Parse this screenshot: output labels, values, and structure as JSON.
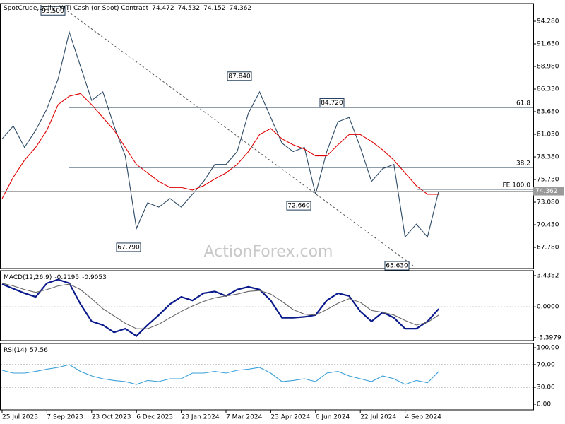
{
  "chart_data": [
    {
      "type": "line",
      "symbol": "SpotCrude,Daily",
      "description": "WTI Cash (or Spot) Contract",
      "ohlc": {
        "open": 74.472,
        "high": 74.532,
        "low": 74.152
      },
      "watermark": "ActionForex.com",
      "categories": [
        "25 Jul 2023",
        null,
        null,
        null,
        "7 Sep 2023",
        null,
        null,
        null,
        "23 Oct 2023",
        null,
        null,
        null,
        "6 Dec 2023",
        null,
        null,
        null,
        "23 Jan 2024",
        null,
        null,
        null,
        "7 Mar 2024",
        null,
        null,
        null,
        "23 Apr 2024",
        null,
        null,
        null,
        "6 Jun 2024",
        null,
        null,
        null,
        "22 Jul 2024",
        null,
        null,
        null,
        "4 Sep 2024",
        null,
        null,
        null
      ],
      "series": [
        {
          "color": "#2c4a66",
          "values": [
            80.5,
            82,
            79.5,
            81.5,
            84,
            87.5,
            93,
            89,
            85,
            86,
            82,
            78.5,
            70,
            73,
            72.5,
            73.5,
            72.5,
            74,
            75.5,
            77.5,
            77.5,
            79,
            83.5,
            86,
            83,
            80,
            79,
            79.5,
            74,
            79,
            82.5,
            83,
            79.5,
            75.5,
            77,
            77.5,
            69,
            70.5,
            69,
            74.362
          ]
        },
        {
          "color": "#e00000",
          "values": [
            73.5,
            76,
            78,
            79.5,
            81.5,
            84.5,
            85.5,
            85.8,
            84.5,
            83,
            81.5,
            79.5,
            77.5,
            76.5,
            75.5,
            74.8,
            74.8,
            74.5,
            75,
            75.8,
            76.5,
            77.5,
            79,
            81,
            81.7,
            80.5,
            79.8,
            79.3,
            78.5,
            78.5,
            79.8,
            81,
            81,
            80.2,
            79.2,
            78,
            76.5,
            75,
            74,
            74
          ]
        }
      ],
      "ylim": [
        65.3,
        96.35
      ],
      "yticks": [
        {
          "value": 94.28,
          "label": "94.280"
        },
        {
          "value": 91.63,
          "label": "91.630"
        },
        {
          "value": 88.98,
          "label": "88.980"
        },
        {
          "value": 86.33,
          "label": "86.330"
        },
        {
          "value": 83.68,
          "label": "83.680"
        },
        {
          "value": 81.03,
          "label": "81.030"
        },
        {
          "value": 78.38,
          "label": "78.380"
        },
        {
          "value": 75.73,
          "label": "75.730"
        },
        {
          "value": 73.08,
          "label": "73.080"
        },
        {
          "value": 70.43,
          "label": "70.430"
        },
        {
          "value": 67.78,
          "label": "67.780"
        }
      ],
      "levels": [
        {
          "value": 84.18,
          "label": "61.8"
        },
        {
          "value": 77.14,
          "label": "38.2"
        },
        {
          "value": 74.58,
          "label": "FE 100.0"
        }
      ],
      "annotations": [
        {
          "value": 95.5,
          "label": "95.500"
        },
        {
          "value": 67.79,
          "label": "67.790"
        },
        {
          "value": 87.84,
          "label": "87.840"
        },
        {
          "value": 72.66,
          "label": "72.660"
        },
        {
          "value": 84.72,
          "label": "84.720"
        },
        {
          "value": 65.63,
          "label": "65.630"
        }
      ]
    },
    {
      "type": "line",
      "title": "MACD(12,26,9)",
      "series": [
        {
          "color": "#0a1a8c",
          "values": [
            2.5,
            2.0,
            1.5,
            1.1,
            2.6,
            3.0,
            2.6,
            0.3,
            -1.6,
            -2.0,
            -2.8,
            -2.4,
            -3.2,
            -2.0,
            -0.9,
            0.3,
            1.1,
            0.7,
            1.5,
            1.7,
            1.2,
            1.9,
            2.2,
            1.9,
            0.7,
            -1.2,
            -1.2,
            -1.1,
            -0.9,
            0.7,
            1.5,
            1.2,
            -0.5,
            -1.6,
            -0.6,
            -1.2,
            -2.4,
            -2.4,
            -1.6,
            -0.2195
          ]
        },
        {
          "color": "#666666",
          "values": [
            2.6,
            2.3,
            1.9,
            1.6,
            1.9,
            2.3,
            2.5,
            1.9,
            0.9,
            -0.2,
            -1.0,
            -1.8,
            -2.4,
            -2.4,
            -1.9,
            -1.2,
            -0.5,
            0.1,
            0.6,
            1.0,
            1.2,
            1.4,
            1.7,
            1.8,
            1.4,
            0.6,
            -0.3,
            -0.8,
            -0.9,
            -0.3,
            0.4,
            0.9,
            0.5,
            -0.4,
            -0.6,
            -0.9,
            -1.5,
            -2.0,
            -1.7,
            -0.9053
          ]
        }
      ],
      "ylim": [
        -3.71,
        3.98
      ],
      "yticks": [
        3.4382,
        {
          "value": 0,
          "label": "0.0000"
        },
        -3.3979
      ]
    },
    {
      "type": "line",
      "title": "RSI(14)",
      "series": [
        {
          "color": "#3aa0d8",
          "values": [
            60,
            55,
            55,
            58,
            62,
            65,
            70,
            58,
            50,
            45,
            42,
            40,
            35,
            42,
            40,
            45,
            45,
            55,
            55,
            58,
            55,
            60,
            62,
            65,
            55,
            40,
            42,
            45,
            40,
            55,
            58,
            50,
            45,
            40,
            50,
            45,
            35,
            42,
            38,
            57.56
          ]
        }
      ],
      "ylim": [
        -10,
        107.5
      ],
      "yticks": [
        {
          "value": 100,
          "label": "100.00"
        },
        {
          "value": 70,
          "label": "70.00"
        },
        {
          "value": 30,
          "label": "30.00"
        },
        {
          "value": 0,
          "label": "0.00"
        }
      ]
    }
  ]
}
